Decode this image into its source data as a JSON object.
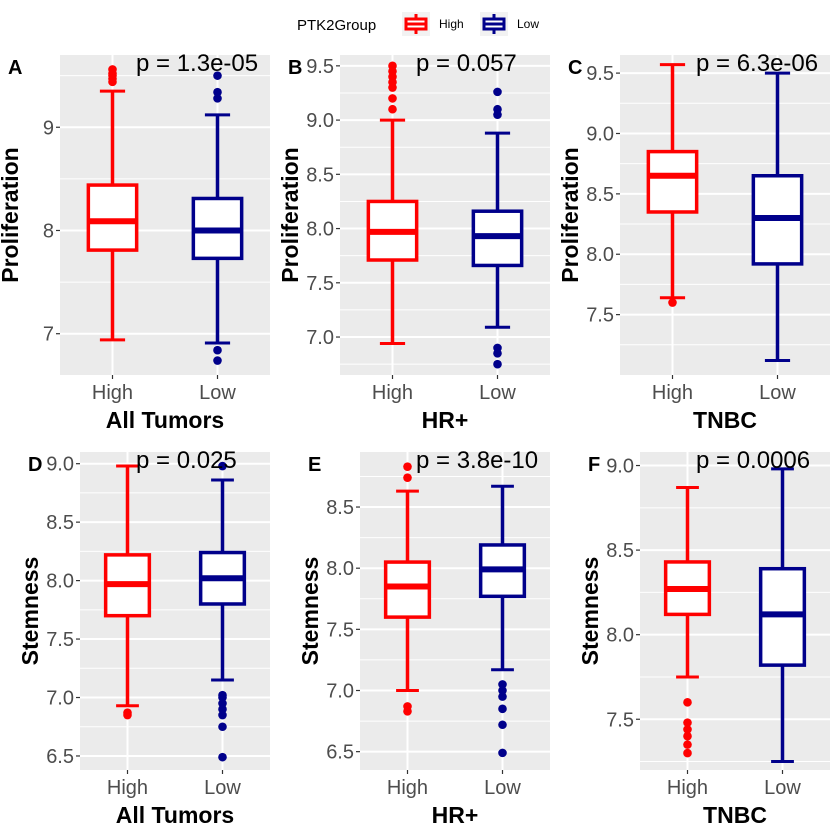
{
  "legend": {
    "title": "PTK2Group",
    "items": [
      {
        "label": "High",
        "color": "#FF0000"
      },
      {
        "label": "Low",
        "color": "#00008B"
      }
    ]
  },
  "chart_data": [
    {
      "type": "box",
      "panel": "A",
      "xlabel": "All Tumors",
      "ylabel": "Proliferation",
      "pvalue": "p = 1.3e-05",
      "ylim": [
        6.6,
        9.7
      ],
      "yticks": [
        7,
        8,
        9
      ],
      "yticklabels": [
        "7",
        "8",
        "9"
      ],
      "categories": [
        "High",
        "Low"
      ],
      "boxes": [
        {
          "group": "High",
          "color": "#FF0000",
          "whisker_low": 6.94,
          "q1": 7.81,
          "median": 8.09,
          "q3": 8.44,
          "whisker_high": 9.35,
          "outliers": [
            9.44,
            9.47,
            9.5,
            9.52,
            9.56
          ]
        },
        {
          "group": "Low",
          "color": "#00008B",
          "whisker_low": 6.91,
          "q1": 7.73,
          "median": 8.0,
          "q3": 8.31,
          "whisker_high": 9.12,
          "outliers": [
            6.74,
            6.84,
            9.28,
            9.34,
            9.5
          ]
        }
      ]
    },
    {
      "type": "box",
      "panel": "B",
      "xlabel": "HR+",
      "ylabel": "Proliferation",
      "pvalue": "p = 0.057",
      "ylim": [
        6.65,
        9.6
      ],
      "yticks": [
        7.0,
        7.5,
        8.0,
        8.5,
        9.0,
        9.5
      ],
      "yticklabels": [
        "7.0",
        "7.5",
        "8.0",
        "8.5",
        "9.0",
        "9.5"
      ],
      "categories": [
        "High",
        "Low"
      ],
      "boxes": [
        {
          "group": "High",
          "color": "#FF0000",
          "whisker_low": 6.94,
          "q1": 7.71,
          "median": 7.97,
          "q3": 8.25,
          "whisker_high": 9.0,
          "outliers": [
            9.1,
            9.2,
            9.3,
            9.35,
            9.4,
            9.45,
            9.5
          ]
        },
        {
          "group": "Low",
          "color": "#00008B",
          "whisker_low": 7.09,
          "q1": 7.66,
          "median": 7.93,
          "q3": 8.16,
          "whisker_high": 8.88,
          "outliers": [
            6.75,
            6.85,
            6.9,
            9.05,
            9.1,
            9.26
          ]
        }
      ]
    },
    {
      "type": "box",
      "panel": "C",
      "xlabel": "TNBC",
      "ylabel": "Proliferation",
      "pvalue": "p = 6.3e-06",
      "ylim": [
        7.0,
        9.65
      ],
      "yticks": [
        7.5,
        8.0,
        8.5,
        9.0,
        9.5
      ],
      "yticklabels": [
        "7.5",
        "8.0",
        "8.5",
        "9.0",
        "9.5"
      ],
      "categories": [
        "High",
        "Low"
      ],
      "boxes": [
        {
          "group": "High",
          "color": "#FF0000",
          "whisker_low": 7.64,
          "q1": 8.35,
          "median": 8.65,
          "q3": 8.85,
          "whisker_high": 9.57,
          "outliers": [
            7.6
          ]
        },
        {
          "group": "Low",
          "color": "#00008B",
          "whisker_low": 7.12,
          "q1": 7.92,
          "median": 8.3,
          "q3": 8.65,
          "whisker_high": 9.5,
          "outliers": []
        }
      ]
    },
    {
      "type": "box",
      "panel": "D",
      "xlabel": "All Tumors",
      "ylabel": "Stemness",
      "pvalue": "p = 0.025",
      "ylim": [
        6.38,
        9.1
      ],
      "yticks": [
        6.5,
        7.0,
        7.5,
        8.0,
        8.5,
        9.0
      ],
      "yticklabels": [
        "6.5",
        "7.0",
        "7.5",
        "8.0",
        "8.5",
        "9.0"
      ],
      "categories": [
        "High",
        "Low"
      ],
      "boxes": [
        {
          "group": "High",
          "color": "#FF0000",
          "whisker_low": 6.93,
          "q1": 7.7,
          "median": 7.97,
          "q3": 8.22,
          "whisker_high": 8.98,
          "outliers": [
            6.85,
            6.87
          ]
        },
        {
          "group": "Low",
          "color": "#00008B",
          "whisker_low": 7.15,
          "q1": 7.8,
          "median": 8.02,
          "q3": 8.24,
          "whisker_high": 8.86,
          "outliers": [
            6.49,
            6.75,
            6.85,
            6.9,
            6.95,
            7.0,
            7.02,
            8.98
          ]
        }
      ]
    },
    {
      "type": "box",
      "panel": "E",
      "xlabel": "HR+",
      "ylabel": "Stemness",
      "pvalue": "p = 3.8e-10",
      "ylim": [
        6.35,
        8.95
      ],
      "yticks": [
        6.5,
        7.0,
        7.5,
        8.0,
        8.5
      ],
      "yticklabels": [
        "6.5",
        "7.0",
        "7.5",
        "8.0",
        "8.5"
      ],
      "categories": [
        "High",
        "Low"
      ],
      "boxes": [
        {
          "group": "High",
          "color": "#FF0000",
          "whisker_low": 7.0,
          "q1": 7.6,
          "median": 7.85,
          "q3": 8.05,
          "whisker_high": 8.63,
          "outliers": [
            6.83,
            6.87,
            8.74,
            8.83
          ]
        },
        {
          "group": "Low",
          "color": "#00008B",
          "whisker_low": 7.17,
          "q1": 7.77,
          "median": 7.99,
          "q3": 8.19,
          "whisker_high": 8.67,
          "outliers": [
            6.49,
            6.72,
            6.85,
            6.95,
            7.0,
            7.05
          ]
        }
      ]
    },
    {
      "type": "box",
      "panel": "F",
      "xlabel": "TNBC",
      "ylabel": "Stemness",
      "pvalue": "p = 0.0006",
      "ylim": [
        7.2,
        9.08
      ],
      "yticks": [
        7.5,
        8.0,
        8.5,
        9.0
      ],
      "yticklabels": [
        "7.5",
        "8.0",
        "8.5",
        "9.0"
      ],
      "categories": [
        "High",
        "Low"
      ],
      "boxes": [
        {
          "group": "High",
          "color": "#FF0000",
          "whisker_low": 7.75,
          "q1": 8.12,
          "median": 8.27,
          "q3": 8.43,
          "whisker_high": 8.87,
          "outliers": [
            7.3,
            7.35,
            7.4,
            7.44,
            7.48,
            7.6
          ]
        },
        {
          "group": "Low",
          "color": "#00008B",
          "whisker_low": 7.25,
          "q1": 7.82,
          "median": 8.12,
          "q3": 8.39,
          "whisker_high": 8.98,
          "outliers": []
        }
      ]
    }
  ]
}
